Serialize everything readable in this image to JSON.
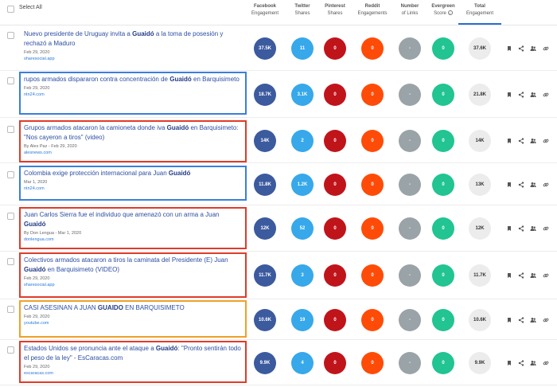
{
  "header": {
    "select_all": "Select All",
    "columns": [
      {
        "id": "facebook",
        "l1": "Facebook",
        "l2": "Engagement"
      },
      {
        "id": "twitter",
        "l1": "Twitter",
        "l2": "Shares"
      },
      {
        "id": "pinterest",
        "l1": "Pinterest",
        "l2": "Shares"
      },
      {
        "id": "reddit",
        "l1": "Reddit",
        "l2": "Engagements"
      },
      {
        "id": "links",
        "l1": "Number",
        "l2": "of Links"
      },
      {
        "id": "evergreen",
        "l1": "Evergreen",
        "l2": "Score"
      },
      {
        "id": "total",
        "l1": "Total",
        "l2": "Engagement"
      }
    ]
  },
  "colors": {
    "facebook": "#3c5a9e",
    "twitter": "#37a8ea",
    "pinterest": "#c0141b",
    "reddit": "#ff4b08",
    "links": "#9aa3a8",
    "evergreen": "#22c491",
    "highlight_blue": "#3a7ee0",
    "highlight_red": "#e03b2a",
    "highlight_orange": "#f0a027"
  },
  "rows": [
    {
      "title_pre": "Nuevo presidente de Uruguay invita a ",
      "title_bold": "Guaidó",
      "title_post": " a la toma de posesión y rechazó a Maduro",
      "meta": "Feb 29, 2020",
      "source": "sharesocial.app",
      "highlight": "none",
      "facebook": "37.5K",
      "twitter": "11",
      "pinterest": "0",
      "reddit": "0",
      "links": "-",
      "evergreen": "0",
      "total": "37.6K"
    },
    {
      "title_pre": "rupos armados dispararon contra concentración de ",
      "title_bold": "Guaidó",
      "title_post": " en Barquisimeto",
      "meta": "Feb 29, 2020",
      "source": "ntn24.com",
      "highlight": "blue",
      "facebook": "18.7K",
      "twitter": "3.1K",
      "pinterest": "0",
      "reddit": "0",
      "links": "-",
      "evergreen": "0",
      "total": "21.8K"
    },
    {
      "title_pre": "Grupos armados atacaron la camioneta donde iva ",
      "title_bold": "Guaidó",
      "title_post": " en Barquisimeto: \"Nos cayeron a tiros\" (video)",
      "meta": "By Alex Paz - Feb 29, 2020",
      "source": "alesnews.com",
      "highlight": "red",
      "facebook": "14K",
      "twitter": "2",
      "pinterest": "0",
      "reddit": "0",
      "links": "-",
      "evergreen": "0",
      "total": "14K"
    },
    {
      "title_pre": "Colombia exige protección internacional para Juan ",
      "title_bold": "Guaidó",
      "title_post": "",
      "meta": "Mar 1, 2020",
      "source": "ntn24.com",
      "highlight": "blue",
      "facebook": "11.8K",
      "twitter": "1.2K",
      "pinterest": "0",
      "reddit": "0",
      "links": "-",
      "evergreen": "0",
      "total": "13K"
    },
    {
      "title_pre": "Juan Carlos Sierra fue el individuo que amenazó con un arma a Juan ",
      "title_bold": "Guaidó",
      "title_post": "",
      "meta": "By Don Lengua - Mar 1, 2020",
      "source": "donlengua.com",
      "highlight": "red",
      "facebook": "12K",
      "twitter": "52",
      "pinterest": "0",
      "reddit": "0",
      "links": "-",
      "evergreen": "0",
      "total": "12K"
    },
    {
      "title_pre": "Colectivos armados atacaron a tiros la caminata del Presidente (E) Juan ",
      "title_bold": "Guaidó",
      "title_post": " en Barquisimeto (VIDEO)",
      "meta": "Feb 29, 2020",
      "source": "sharesocial.app",
      "highlight": "red",
      "facebook": "11.7K",
      "twitter": "3",
      "pinterest": "0",
      "reddit": "0",
      "links": "-",
      "evergreen": "0",
      "total": "11.7K"
    },
    {
      "title_pre": "CASI ASESINAN A JUAN ",
      "title_bold": "GUAIDO",
      "title_post": " EN BARQUISIMETO",
      "meta": "Feb 29, 2020",
      "source": "youtube.com",
      "highlight": "orange",
      "facebook": "10.6K",
      "twitter": "19",
      "pinterest": "0",
      "reddit": "0",
      "links": "-",
      "evergreen": "0",
      "total": "10.6K"
    },
    {
      "title_pre": "Estados Unidos se pronuncia ante el ataque a ",
      "title_bold": "Guaidó",
      "title_post": ": \"Pronto sentirán todo el peso de la ley\" - EsCaracas.com",
      "meta": "Feb 29, 2020",
      "source": "escaracas.com",
      "highlight": "red",
      "facebook": "9.9K",
      "twitter": "4",
      "pinterest": "0",
      "reddit": "0",
      "links": "-",
      "evergreen": "0",
      "total": "9.9K"
    }
  ],
  "action_icons": [
    "bookmark-icon",
    "share-icon",
    "users-icon",
    "link-icon"
  ]
}
